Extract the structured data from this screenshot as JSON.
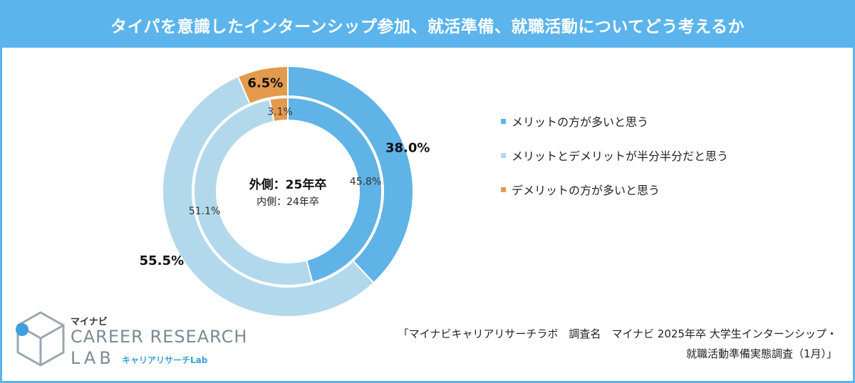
{
  "header": {
    "title": "タイパを意識したインターンシップ参加、就活準備、就職活動についてどう考えるか"
  },
  "center": {
    "outer_label": "外側：25年卒",
    "inner_label": "内側：24年卒"
  },
  "colors": {
    "header": "#5bb4ec",
    "merit": "#5fb3e6",
    "half": "#b2d8ec",
    "demerit": "#e39a4c"
  },
  "chart_data": {
    "type": "donut",
    "rings": [
      {
        "name": "外側：25年卒",
        "ring": "outer",
        "values": [
          38.0,
          55.5,
          6.5
        ],
        "labels": [
          "38.0%",
          "55.5%",
          "6.5%"
        ]
      },
      {
        "name": "内側：24年卒",
        "ring": "inner",
        "values": [
          45.8,
          51.1,
          3.1
        ],
        "labels": [
          "45.8%",
          "51.1%",
          "3.1%"
        ]
      }
    ],
    "categories": [
      "メリットの方が多いと思う",
      "メリットとデメリットが半分半分だと思う",
      "デメリットの方が多いと思う"
    ],
    "legend_position": "right"
  },
  "logo": {
    "brand_jp": "マイナビ",
    "brand_en_line1": "CAREER RESEARCH",
    "brand_en_line2": "LAB",
    "brand_sub": "キャリアリサーチLab",
    "icon": "cube-logo-icon"
  },
  "source": {
    "line1": "「マイナビキャリアリサーチラボ　調査名　マイナビ 2025年卒 大学生インターンシップ・",
    "line2": "就職活動準備実態調査（1月）」"
  }
}
